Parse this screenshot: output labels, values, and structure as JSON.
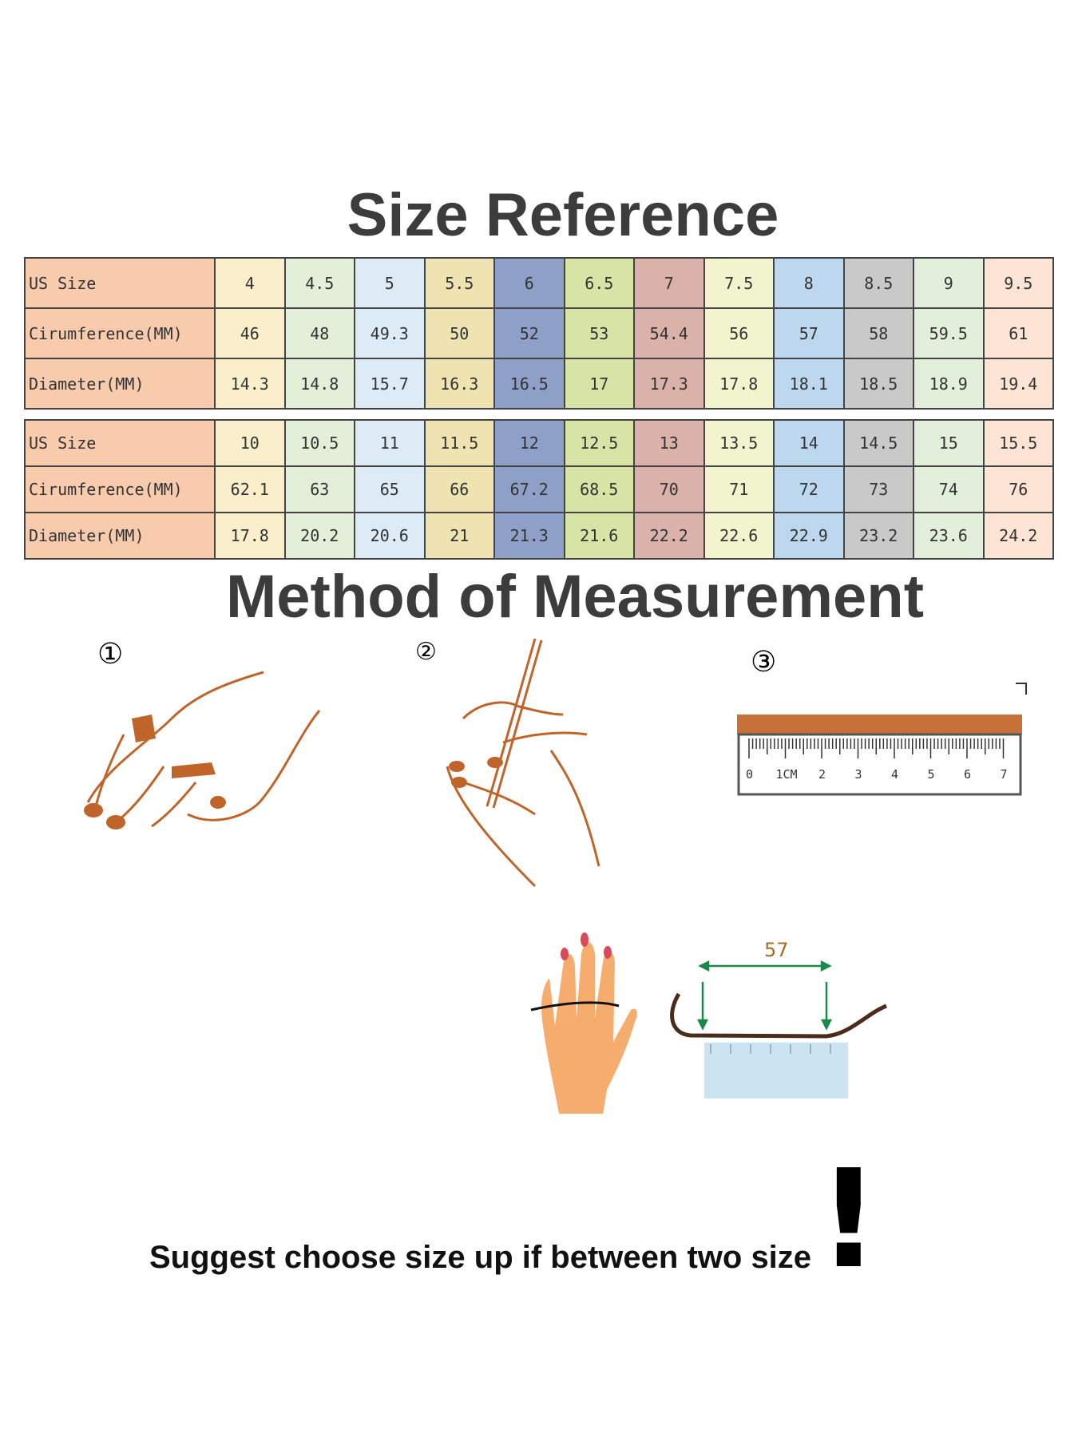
{
  "title": "Size Reference",
  "method_title": "Method of Measurement",
  "column_colors": [
    "#fbefcb",
    "#e3efd9",
    "#ddebf7",
    "#efe4b1",
    "#8ea0c8",
    "#d7e4a6",
    "#dbb2aa",
    "#f1f4cd",
    "#bdd7ee",
    "#c9c9c9",
    "#e2efda",
    "#fde4d4"
  ],
  "label_color": "#f8cbad",
  "tables": [
    {
      "rows": [
        {
          "label": "US Size",
          "values": [
            "4",
            "4.5",
            "5",
            "5.5",
            "6",
            "6.5",
            "7",
            "7.5",
            "8",
            "8.5",
            "9",
            "9.5"
          ]
        },
        {
          "label": "Cirumference(MM)",
          "values": [
            "46",
            "48",
            "49.3",
            "50",
            "52",
            "53",
            "54.4",
            "56",
            "57",
            "58",
            "59.5",
            "61"
          ]
        },
        {
          "label": "Diameter(MM)",
          "values": [
            "14.3",
            "14.8",
            "15.7",
            "16.3",
            "16.5",
            "17",
            "17.3",
            "17.8",
            "18.1",
            "18.5",
            "18.9",
            "19.4"
          ]
        }
      ]
    },
    {
      "rows": [
        {
          "label": "US Size",
          "values": [
            "10",
            "10.5",
            "11",
            "11.5",
            "12",
            "12.5",
            "13",
            "13.5",
            "14",
            "14.5",
            "15",
            "15.5"
          ]
        },
        {
          "label": "Cirumference(MM)",
          "values": [
            "62.1",
            "63",
            "65",
            "66",
            "67.2",
            "68.5",
            "70",
            "71",
            "72",
            "73",
            "74",
            "76"
          ]
        },
        {
          "label": "Diameter(MM)",
          "values": [
            "17.8",
            "20.2",
            "20.6",
            "21",
            "21.3",
            "21.6",
            "22.2",
            "22.6",
            "22.9",
            "23.2",
            "23.6",
            "24.2"
          ]
        }
      ]
    }
  ],
  "steps": [
    "①",
    "②",
    "③"
  ],
  "ruler_labels": [
    "0",
    "1CM",
    "2",
    "3",
    "4",
    "5",
    "6",
    "7"
  ],
  "measure_value": "57",
  "note": "Suggest choose size up if between two size",
  "note_mark": "!"
}
